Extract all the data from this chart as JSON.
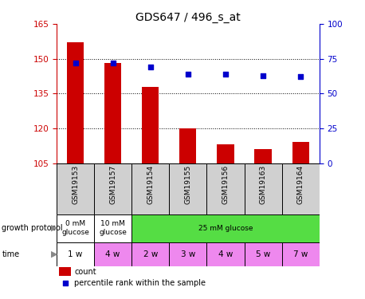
{
  "title": "GDS647 / 496_s_at",
  "samples": [
    "GSM19153",
    "GSM19157",
    "GSM19154",
    "GSM19155",
    "GSM19156",
    "GSM19163",
    "GSM19164"
  ],
  "bar_values": [
    157,
    148,
    138,
    120,
    113,
    111,
    114
  ],
  "percentile_values": [
    72,
    72,
    69,
    64,
    64,
    63,
    62
  ],
  "ylim_left": [
    105,
    165
  ],
  "ylim_right": [
    0,
    100
  ],
  "yticks_left": [
    105,
    120,
    135,
    150,
    165
  ],
  "yticks_right": [
    0,
    25,
    50,
    75,
    100
  ],
  "bar_color": "#cc0000",
  "dot_color": "#0000cc",
  "background_color": "#ffffff",
  "protocol_groups": [
    {
      "label": "0 mM\nglucose",
      "cols": [
        0
      ],
      "color": "#ffffff"
    },
    {
      "label": "10 mM\nglucose",
      "cols": [
        1
      ],
      "color": "#ffffff"
    },
    {
      "label": "25 mM glucose",
      "cols": [
        2,
        3,
        4,
        5,
        6
      ],
      "color": "#55dd44"
    }
  ],
  "time_row": [
    "1 w",
    "4 w",
    "2 w",
    "3 w",
    "4 w",
    "5 w",
    "7 w"
  ],
  "time_colors": [
    "#ffffff",
    "#ee88ee",
    "#ee88ee",
    "#ee88ee",
    "#ee88ee",
    "#ee88ee",
    "#ee88ee"
  ],
  "legend_count_color": "#cc0000",
  "legend_dot_color": "#0000cc",
  "title_fontsize": 10,
  "tick_fontsize": 7.5,
  "label_fontsize": 7
}
